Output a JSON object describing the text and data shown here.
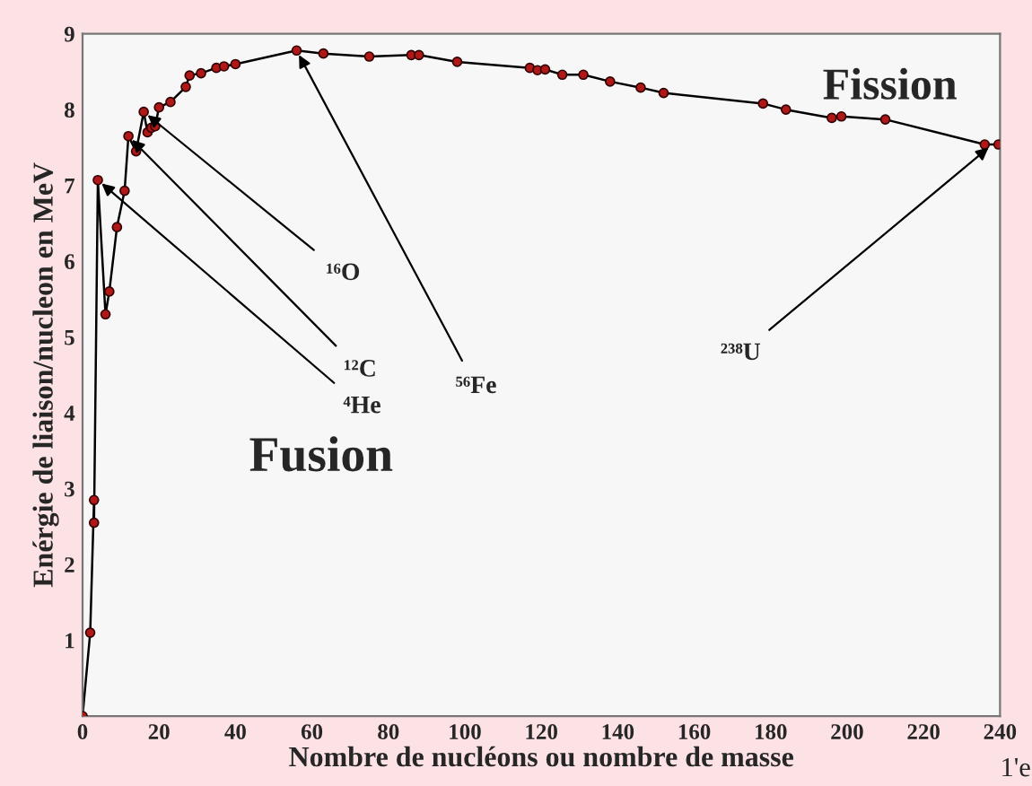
{
  "chart_data": {
    "type": "line",
    "xlabel": "Nombre de nucléons ou nombre de masse",
    "ylabel": "Enérgie de liaison/nucleon en MeV",
    "series": [
      {
        "color": "#b01818",
        "x": [
          0,
          2,
          3,
          3,
          4,
          6,
          7,
          9,
          11,
          12,
          14,
          16,
          17,
          18,
          19,
          20,
          23,
          27,
          28,
          31,
          35,
          37,
          40,
          56,
          63,
          75,
          86,
          88,
          98,
          117,
          119,
          121,
          125.5,
          131,
          138,
          146,
          152,
          178,
          184,
          196,
          198.5,
          210,
          236,
          239.6
        ],
        "values": [
          0,
          1.1,
          2.85,
          2.55,
          7.07,
          5.3,
          5.6,
          6.45,
          6.93,
          7.65,
          7.45,
          7.97,
          7.7,
          7.76,
          7.78,
          8.03,
          8.1,
          8.3,
          8.45,
          8.48,
          8.55,
          8.57,
          8.6,
          8.78,
          8.74,
          8.7,
          8.72,
          8.72,
          8.63,
          8.55,
          8.52,
          8.53,
          8.46,
          8.46,
          8.37,
          8.29,
          8.22,
          8.08,
          8.0,
          7.89,
          7.91,
          7.87,
          7.54,
          7.54
        ]
      }
    ],
    "marker": "circle",
    "line_style": "solid",
    "grid": false,
    "legend": false,
    "xlim": [
      0,
      240
    ],
    "xticks": [
      0,
      20,
      40,
      60,
      80,
      100,
      120,
      140,
      160,
      180,
      200,
      220,
      240
    ],
    "ylim": [
      0,
      9
    ],
    "yticks": [
      1,
      2,
      3,
      4,
      5,
      6,
      7,
      8,
      9
    ],
    "annotations": [
      {
        "text": "⁴He",
        "x": 4,
        "y": 7.07
      },
      {
        "text": "¹²C",
        "x": 12,
        "y": 7.65
      },
      {
        "text": "¹⁶O",
        "x": 16,
        "y": 7.97
      },
      {
        "text": "⁵⁶Fe",
        "x": 56,
        "y": 8.78
      },
      {
        "text": "²³⁸U",
        "x": 238,
        "y": 7.54
      },
      "Fusion",
      "Fission",
      "1'e"
    ]
  }
}
